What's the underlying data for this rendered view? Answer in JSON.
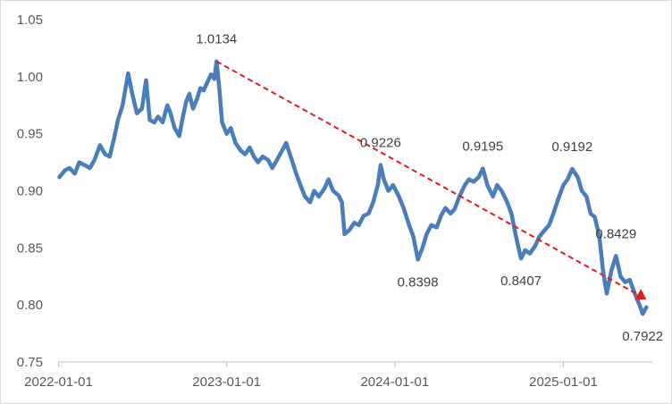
{
  "chart_data": {
    "type": "line",
    "title": "",
    "xlabel": "",
    "ylabel": "",
    "ylim": [
      0.75,
      1.05
    ],
    "y_ticks": [
      "0.75",
      "0.80",
      "0.85",
      "0.90",
      "0.95",
      "1.00",
      "1.05"
    ],
    "x_ticks": [
      {
        "label": "2022-01-01",
        "date": "2022-01-01"
      },
      {
        "label": "2023-01-01",
        "date": "2023-01-01"
      },
      {
        "label": "2024-01-01",
        "date": "2024-01-01"
      },
      {
        "label": "2025-01-01",
        "date": "2025-01-01"
      }
    ],
    "grid": false,
    "legend": "none",
    "series": [
      {
        "color": "#4a7ebb",
        "points": [
          [
            "2022-01-03",
            0.912
          ],
          [
            "2022-01-15",
            0.918
          ],
          [
            "2022-01-25",
            0.92
          ],
          [
            "2022-02-05",
            0.915
          ],
          [
            "2022-02-15",
            0.925
          ],
          [
            "2022-03-01",
            0.922
          ],
          [
            "2022-03-10",
            0.92
          ],
          [
            "2022-03-20",
            0.927
          ],
          [
            "2022-04-01",
            0.94
          ],
          [
            "2022-04-12",
            0.932
          ],
          [
            "2022-04-22",
            0.93
          ],
          [
            "2022-05-01",
            0.945
          ],
          [
            "2022-05-10",
            0.962
          ],
          [
            "2022-05-20",
            0.975
          ],
          [
            "2022-06-01",
            1.003
          ],
          [
            "2022-06-10",
            0.985
          ],
          [
            "2022-06-20",
            0.968
          ],
          [
            "2022-07-01",
            0.972
          ],
          [
            "2022-07-10",
            0.997
          ],
          [
            "2022-07-18",
            0.962
          ],
          [
            "2022-07-28",
            0.96
          ],
          [
            "2022-08-05",
            0.965
          ],
          [
            "2022-08-15",
            0.96
          ],
          [
            "2022-08-25",
            0.975
          ],
          [
            "2022-09-01",
            0.968
          ],
          [
            "2022-09-10",
            0.955
          ],
          [
            "2022-09-20",
            0.948
          ],
          [
            "2022-09-28",
            0.965
          ],
          [
            "2022-10-05",
            0.978
          ],
          [
            "2022-10-12",
            0.985
          ],
          [
            "2022-10-20",
            0.972
          ],
          [
            "2022-10-28",
            0.98
          ],
          [
            "2022-11-05",
            0.99
          ],
          [
            "2022-11-12",
            0.988
          ],
          [
            "2022-11-20",
            0.995
          ],
          [
            "2022-11-28",
            1.002
          ],
          [
            "2022-12-05",
            0.998
          ],
          [
            "2022-12-10",
            1.0134
          ],
          [
            "2022-12-16",
            0.99
          ],
          [
            "2022-12-22",
            0.96
          ],
          [
            "2023-01-01",
            0.95
          ],
          [
            "2023-01-10",
            0.955
          ],
          [
            "2023-01-20",
            0.942
          ],
          [
            "2023-02-01",
            0.935
          ],
          [
            "2023-02-10",
            0.932
          ],
          [
            "2023-02-20",
            0.938
          ],
          [
            "2023-03-01",
            0.93
          ],
          [
            "2023-03-10",
            0.925
          ],
          [
            "2023-03-20",
            0.93
          ],
          [
            "2023-04-01",
            0.927
          ],
          [
            "2023-04-10",
            0.92
          ],
          [
            "2023-04-20",
            0.927
          ],
          [
            "2023-05-01",
            0.935
          ],
          [
            "2023-05-10",
            0.942
          ],
          [
            "2023-05-20",
            0.93
          ],
          [
            "2023-06-01",
            0.915
          ],
          [
            "2023-06-10",
            0.905
          ],
          [
            "2023-06-20",
            0.895
          ],
          [
            "2023-07-01",
            0.89
          ],
          [
            "2023-07-10",
            0.9
          ],
          [
            "2023-07-20",
            0.895
          ],
          [
            "2023-08-01",
            0.902
          ],
          [
            "2023-08-10",
            0.91
          ],
          [
            "2023-08-20",
            0.9
          ],
          [
            "2023-09-01",
            0.896
          ],
          [
            "2023-09-08",
            0.89
          ],
          [
            "2023-09-14",
            0.862
          ],
          [
            "2023-09-25",
            0.866
          ],
          [
            "2023-10-05",
            0.872
          ],
          [
            "2023-10-15",
            0.87
          ],
          [
            "2023-10-25",
            0.878
          ],
          [
            "2023-11-05",
            0.88
          ],
          [
            "2023-11-15",
            0.89
          ],
          [
            "2023-11-25",
            0.905
          ],
          [
            "2023-12-01",
            0.9226
          ],
          [
            "2023-12-08",
            0.91
          ],
          [
            "2023-12-18",
            0.9
          ],
          [
            "2023-12-28",
            0.905
          ],
          [
            "2024-01-10",
            0.895
          ],
          [
            "2024-01-20",
            0.885
          ],
          [
            "2024-02-01",
            0.87
          ],
          [
            "2024-02-10",
            0.86
          ],
          [
            "2024-02-20",
            0.8398
          ],
          [
            "2024-03-01",
            0.85
          ],
          [
            "2024-03-10",
            0.862
          ],
          [
            "2024-03-20",
            0.87
          ],
          [
            "2024-04-01",
            0.868
          ],
          [
            "2024-04-10",
            0.878
          ],
          [
            "2024-04-20",
            0.885
          ],
          [
            "2024-05-01",
            0.88
          ],
          [
            "2024-05-10",
            0.884
          ],
          [
            "2024-05-20",
            0.895
          ],
          [
            "2024-06-01",
            0.905
          ],
          [
            "2024-06-10",
            0.91
          ],
          [
            "2024-06-20",
            0.908
          ],
          [
            "2024-07-01",
            0.912
          ],
          [
            "2024-07-10",
            0.9195
          ],
          [
            "2024-07-20",
            0.905
          ],
          [
            "2024-08-01",
            0.895
          ],
          [
            "2024-08-10",
            0.905
          ],
          [
            "2024-08-20",
            0.9
          ],
          [
            "2024-09-01",
            0.89
          ],
          [
            "2024-09-10",
            0.88
          ],
          [
            "2024-09-20",
            0.86
          ],
          [
            "2024-10-01",
            0.8407
          ],
          [
            "2024-10-10",
            0.848
          ],
          [
            "2024-10-20",
            0.845
          ],
          [
            "2024-11-01",
            0.852
          ],
          [
            "2024-11-10",
            0.86
          ],
          [
            "2024-11-20",
            0.865
          ],
          [
            "2024-12-01",
            0.87
          ],
          [
            "2024-12-10",
            0.88
          ],
          [
            "2024-12-20",
            0.892
          ],
          [
            "2025-01-01",
            0.905
          ],
          [
            "2025-01-10",
            0.91
          ],
          [
            "2025-01-20",
            0.9192
          ],
          [
            "2025-02-01",
            0.912
          ],
          [
            "2025-02-10",
            0.9
          ],
          [
            "2025-02-20",
            0.895
          ],
          [
            "2025-03-01",
            0.88
          ],
          [
            "2025-03-10",
            0.877
          ],
          [
            "2025-03-20",
            0.86
          ],
          [
            "2025-03-28",
            0.83
          ],
          [
            "2025-04-05",
            0.81
          ],
          [
            "2025-04-15",
            0.83
          ],
          [
            "2025-04-25",
            0.8429
          ],
          [
            "2025-05-05",
            0.825
          ],
          [
            "2025-05-15",
            0.82
          ],
          [
            "2025-05-25",
            0.822
          ],
          [
            "2025-06-05",
            0.81
          ],
          [
            "2025-06-15",
            0.8
          ],
          [
            "2025-06-22",
            0.7922
          ],
          [
            "2025-06-30",
            0.798
          ]
        ]
      }
    ],
    "trendline": {
      "color": "#e41a1c",
      "style": "dashed",
      "from": [
        "2022-12-10",
        1.0134
      ],
      "to": [
        "2025-06-30",
        0.805
      ],
      "arrow": true
    },
    "annotations": [
      {
        "text": "1.0134",
        "x": "2022-12-10",
        "y": 1.0134,
        "placement": "above"
      },
      {
        "text": "0.9226",
        "x": "2023-12-01",
        "y": 0.9226,
        "placement": "above"
      },
      {
        "text": "0.8398",
        "x": "2024-02-20",
        "y": 0.8398,
        "placement": "below"
      },
      {
        "text": "0.9195",
        "x": "2024-07-10",
        "y": 0.9195,
        "placement": "above"
      },
      {
        "text": "0.8407",
        "x": "2024-10-01",
        "y": 0.8407,
        "placement": "below"
      },
      {
        "text": "0.9192",
        "x": "2025-01-20",
        "y": 0.9192,
        "placement": "above"
      },
      {
        "text": "0.8429",
        "x": "2025-04-25",
        "y": 0.8429,
        "placement": "above"
      },
      {
        "text": "0.7922",
        "x": "2025-06-22",
        "y": 0.7922,
        "placement": "below"
      }
    ]
  }
}
